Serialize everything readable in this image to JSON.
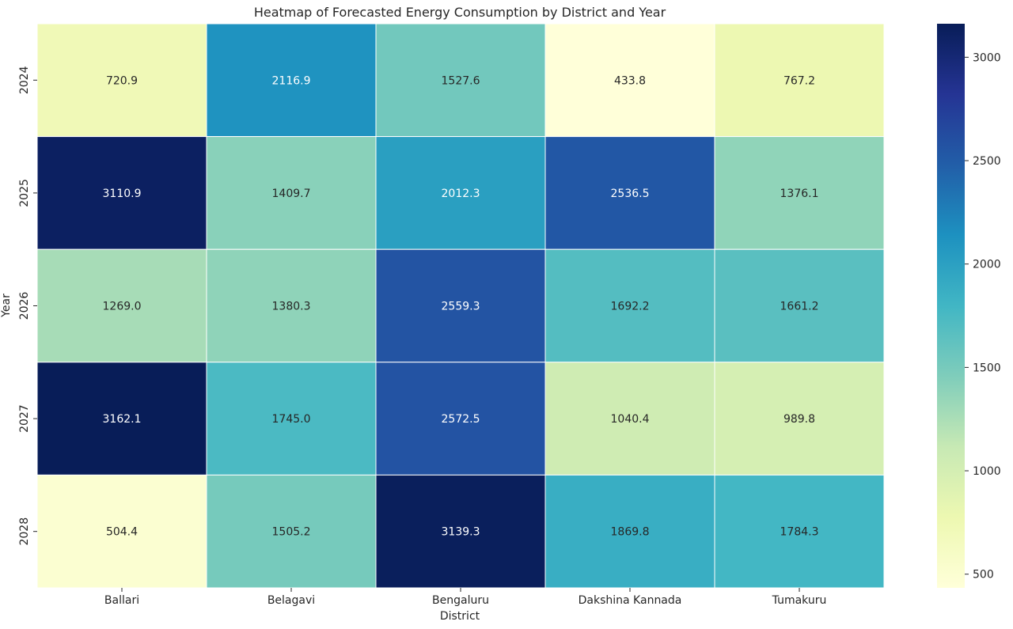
{
  "chart_data": {
    "type": "heatmap",
    "title": "Heatmap of Forecasted Energy Consumption by District and Year",
    "xlabel": "District",
    "ylabel": "Year",
    "x_categories": [
      "Ballari",
      "Belagavi",
      "Bengaluru",
      "Dakshina Kannada",
      "Tumakuru"
    ],
    "y_categories": [
      "2024",
      "2025",
      "2026",
      "2027",
      "2028"
    ],
    "values": [
      [
        720.9,
        2116.9,
        1527.6,
        433.8,
        767.2
      ],
      [
        3110.9,
        1409.7,
        2012.3,
        2536.5,
        1376.1
      ],
      [
        1269.0,
        1380.3,
        2559.3,
        1692.2,
        1661.2
      ],
      [
        3162.1,
        1745.0,
        2572.5,
        1040.4,
        989.8
      ],
      [
        504.4,
        1505.2,
        3139.3,
        1869.8,
        1784.3
      ]
    ],
    "value_format": "0.0",
    "colormap": "YlGnBu",
    "vmin": 433.8,
    "vmax": 3162.1,
    "colorbar_ticks": [
      500,
      1000,
      1500,
      2000,
      2500,
      3000
    ],
    "cell_border_color": "#ffffff",
    "colormap_stops": [
      "#ffffd9",
      "#edf8b1",
      "#c7e9b4",
      "#7fcdbb",
      "#41b6c4",
      "#1d91c0",
      "#225ea8",
      "#253494",
      "#081d58"
    ]
  }
}
